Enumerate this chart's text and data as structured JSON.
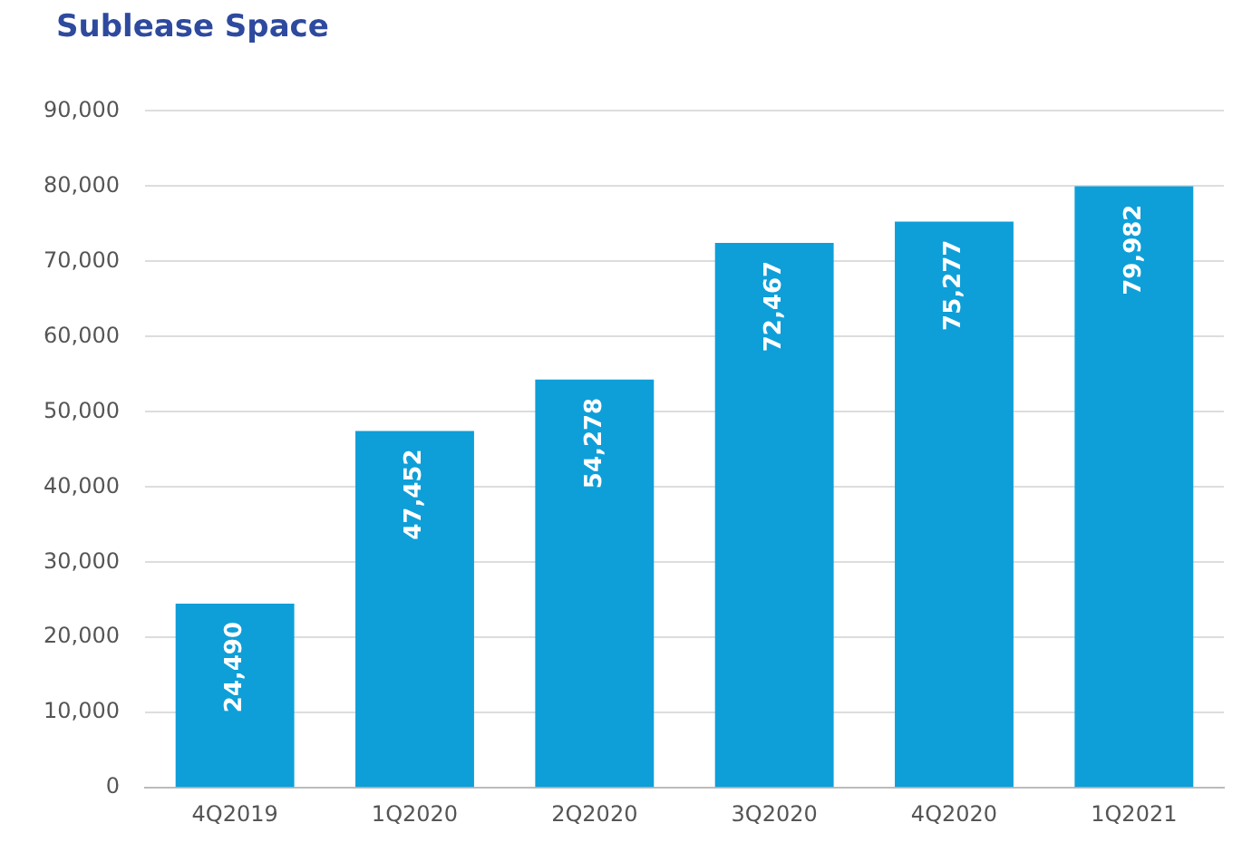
{
  "chart_data": {
    "type": "bar",
    "title": "Sublease Space",
    "categories": [
      "4Q2019",
      "1Q2020",
      "2Q2020",
      "3Q2020",
      "4Q2020",
      "1Q2021"
    ],
    "values": [
      24490,
      47452,
      54278,
      72467,
      75277,
      79982
    ],
    "color": "#0e9fd8",
    "ylim": [
      0,
      90000
    ],
    "yticks": [
      {
        "value": 0,
        "label": "0"
      },
      {
        "value": 10000,
        "label": "10,000"
      },
      {
        "value": 20000,
        "label": "20,000"
      },
      {
        "value": 30000,
        "label": "30,000"
      },
      {
        "value": 40000,
        "label": "40,000"
      },
      {
        "value": 50000,
        "label": "50,000"
      },
      {
        "value": 60000,
        "label": "60,000"
      },
      {
        "value": 70000,
        "label": "70,000"
      },
      {
        "value": 80000,
        "label": "80,000"
      },
      {
        "value": 90000,
        "label": "90,000"
      }
    ],
    "value_labels": [
      "24,490",
      "47,452",
      "54,278",
      "72,467",
      "75,277",
      "79,982"
    ],
    "grid": "y"
  }
}
